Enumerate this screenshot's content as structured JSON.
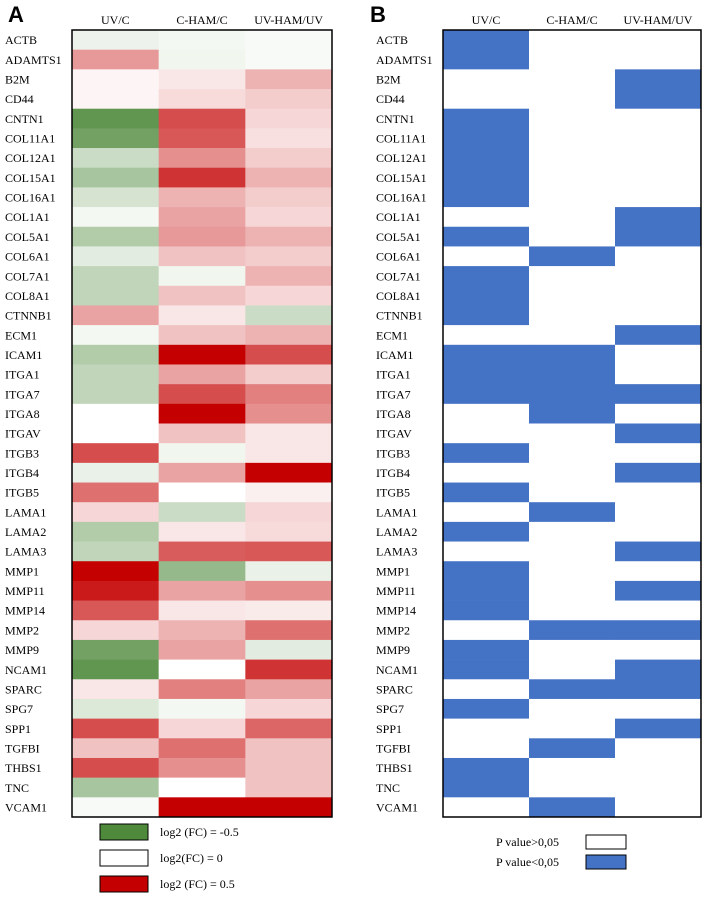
{
  "chart_data": [
    {
      "type": "heatmap",
      "panel_label": "A",
      "columns": [
        "UV/C",
        "C-HAM/C",
        "UV-HAM/UV"
      ],
      "rows": [
        "ACTB",
        "ADAMTS1",
        "B2M",
        "CD44",
        "CNTN1",
        "COL11A1",
        "COL12A1",
        "COL15A1",
        "COL16A1",
        "COL1A1",
        "COL5A1",
        "COL6A1",
        "COL7A1",
        "COL8A1",
        "CTNNB1",
        "ECM1",
        "ICAM1",
        "ITGA1",
        "ITGA7",
        "ITGA8",
        "ITGAV",
        "ITGB3",
        "ITGB4",
        "ITGB5",
        "LAMA1",
        "LAMA2",
        "LAMA3",
        "MMP1",
        "MMP11",
        "MMP14",
        "MMP2",
        "MMP9",
        "NCAM1",
        "SPARC",
        "SPG7",
        "SPP1",
        "TGFBI",
        "THBS1",
        "TNC",
        "VCAM1"
      ],
      "values": [
        [
          -0.05,
          -0.03,
          -0.02
        ],
        [
          0.2,
          -0.04,
          -0.02
        ],
        [
          0.02,
          0.05,
          0.15
        ],
        [
          0.02,
          0.07,
          0.1
        ],
        [
          -0.45,
          0.35,
          0.08
        ],
        [
          -0.4,
          0.33,
          0.06
        ],
        [
          -0.15,
          0.22,
          0.1
        ],
        [
          -0.25,
          0.4,
          0.15
        ],
        [
          -0.12,
          0.15,
          0.1
        ],
        [
          -0.03,
          0.18,
          0.08
        ],
        [
          -0.22,
          0.2,
          0.15
        ],
        [
          -0.08,
          0.12,
          0.1
        ],
        [
          -0.18,
          -0.04,
          0.15
        ],
        [
          -0.18,
          0.12,
          0.08
        ],
        [
          0.18,
          0.05,
          -0.15
        ],
        [
          -0.03,
          0.12,
          0.15
        ],
        [
          -0.22,
          0.5,
          0.35
        ],
        [
          -0.18,
          0.18,
          0.1
        ],
        [
          -0.18,
          0.35,
          0.25
        ],
        [
          0.0,
          0.5,
          0.22
        ],
        [
          0.0,
          0.12,
          0.05
        ],
        [
          0.35,
          -0.04,
          0.05
        ],
        [
          -0.06,
          0.18,
          0.5
        ],
        [
          0.28,
          0.0,
          0.03
        ],
        [
          0.08,
          -0.15,
          0.08
        ],
        [
          -0.22,
          0.05,
          0.07
        ],
        [
          -0.18,
          0.32,
          0.33
        ],
        [
          0.5,
          -0.3,
          -0.06
        ],
        [
          0.45,
          0.18,
          0.22
        ],
        [
          0.33,
          0.05,
          0.04
        ],
        [
          0.08,
          0.15,
          0.28
        ],
        [
          -0.4,
          0.18,
          -0.08
        ],
        [
          -0.45,
          0.0,
          0.4
        ],
        [
          0.05,
          0.25,
          0.18
        ],
        [
          -0.1,
          -0.03,
          0.08
        ],
        [
          0.35,
          0.08,
          0.3
        ],
        [
          0.12,
          0.28,
          0.12
        ],
        [
          0.35,
          0.22,
          0.12
        ],
        [
          -0.25,
          0.0,
          0.12
        ],
        [
          -0.02,
          0.5,
          0.5
        ]
      ],
      "legend": [
        {
          "label": "log2 (FC) = -0.5",
          "color": "#4f8a3c"
        },
        {
          "label": "log2(FC) = 0",
          "color": "#ffffff"
        },
        {
          "label": "log2 (FC) = 0.5",
          "color": "#c40000"
        }
      ],
      "colors": {
        "negative": "#4f8a3c",
        "zero": "#ffffff",
        "positive": "#c40000"
      }
    },
    {
      "type": "heatmap",
      "panel_label": "B",
      "columns": [
        "UV/C",
        "C-HAM/C",
        "UV-HAM/UV"
      ],
      "rows": [
        "ACTB",
        "ADAMTS1",
        "B2M",
        "CD44",
        "CNTN1",
        "COL11A1",
        "COL12A1",
        "COL15A1",
        "COL16A1",
        "COL1A1",
        "COL5A1",
        "COL6A1",
        "COL7A1",
        "COL8A1",
        "CTNNB1",
        "ECM1",
        "ICAM1",
        "ITGA1",
        "ITGA7",
        "ITGA8",
        "ITGAV",
        "ITGB3",
        "ITGB4",
        "ITGB5",
        "LAMA1",
        "LAMA2",
        "LAMA3",
        "MMP1",
        "MMP11",
        "MMP14",
        "MMP2",
        "MMP9",
        "NCAM1",
        "SPARC",
        "SPG7",
        "SPP1",
        "TGFBI",
        "THBS1",
        "TNC",
        "VCAM1"
      ],
      "significant": [
        [
          1,
          0,
          0
        ],
        [
          1,
          0,
          0
        ],
        [
          0,
          0,
          1
        ],
        [
          0,
          0,
          1
        ],
        [
          1,
          0,
          0
        ],
        [
          1,
          0,
          0
        ],
        [
          1,
          0,
          0
        ],
        [
          1,
          0,
          0
        ],
        [
          1,
          0,
          0
        ],
        [
          0,
          0,
          1
        ],
        [
          1,
          0,
          1
        ],
        [
          0,
          1,
          0
        ],
        [
          1,
          0,
          0
        ],
        [
          1,
          0,
          0
        ],
        [
          1,
          0,
          0
        ],
        [
          0,
          0,
          1
        ],
        [
          1,
          1,
          0
        ],
        [
          1,
          1,
          0
        ],
        [
          1,
          1,
          1
        ],
        [
          0,
          1,
          0
        ],
        [
          0,
          0,
          1
        ],
        [
          1,
          0,
          0
        ],
        [
          0,
          0,
          1
        ],
        [
          1,
          0,
          0
        ],
        [
          0,
          1,
          0
        ],
        [
          1,
          0,
          0
        ],
        [
          0,
          0,
          1
        ],
        [
          1,
          0,
          0
        ],
        [
          1,
          0,
          1
        ],
        [
          1,
          0,
          0
        ],
        [
          0,
          1,
          1
        ],
        [
          1,
          0,
          0
        ],
        [
          1,
          0,
          1
        ],
        [
          0,
          1,
          1
        ],
        [
          1,
          0,
          0
        ],
        [
          0,
          0,
          1
        ],
        [
          0,
          1,
          0
        ],
        [
          1,
          0,
          0
        ],
        [
          1,
          0,
          0
        ],
        [
          0,
          1,
          0
        ]
      ],
      "legend": [
        {
          "label": "P value>0,05",
          "color": "#ffffff"
        },
        {
          "label": "P value<0,05",
          "color": "#4472c4"
        }
      ],
      "colors": {
        "significant": "#4472c4",
        "not_significant": "#ffffff"
      }
    }
  ]
}
